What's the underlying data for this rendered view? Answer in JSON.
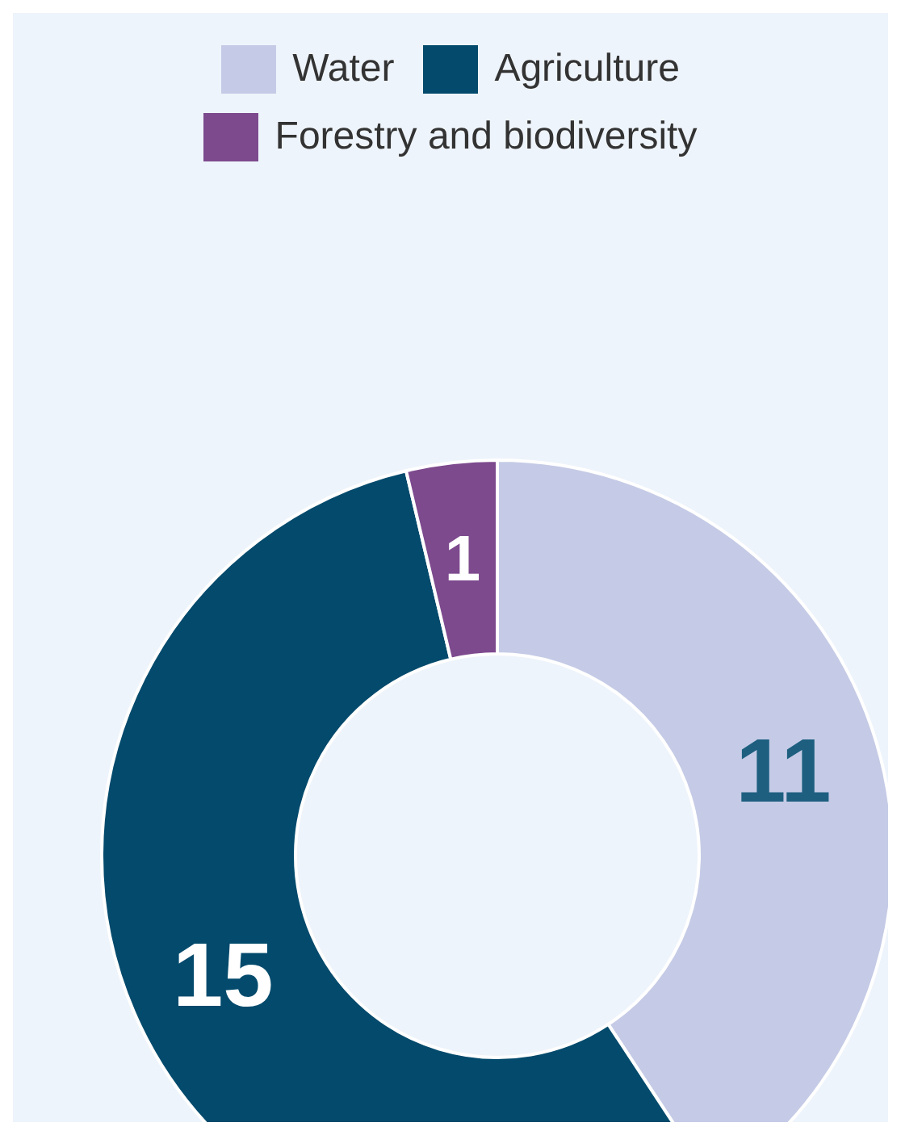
{
  "chart_data": {
    "type": "donut",
    "categories": [
      "Water",
      "Agriculture",
      "Forestry and biodiversity"
    ],
    "values": [
      11,
      15,
      1
    ],
    "colors": [
      "#c5cbe6",
      "#034a6c",
      "#7d4a8e"
    ],
    "data_labels": true,
    "legend": "top"
  }
}
